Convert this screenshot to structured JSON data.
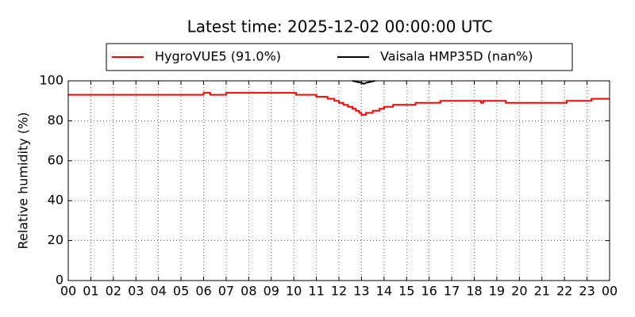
{
  "chart_data": {
    "type": "line",
    "title": "Latest time: 2025-12-02 00:00:00 UTC",
    "ylabel": "Relative humidity (%)",
    "xlim": [
      0,
      24
    ],
    "ylim": [
      0,
      100
    ],
    "xticks": [
      {
        "value": 0,
        "label": "00"
      },
      {
        "value": 1,
        "label": "01"
      },
      {
        "value": 2,
        "label": "02"
      },
      {
        "value": 3,
        "label": "03"
      },
      {
        "value": 4,
        "label": "04"
      },
      {
        "value": 5,
        "label": "05"
      },
      {
        "value": 6,
        "label": "06"
      },
      {
        "value": 7,
        "label": "07"
      },
      {
        "value": 8,
        "label": "08"
      },
      {
        "value": 9,
        "label": "09"
      },
      {
        "value": 10,
        "label": "10"
      },
      {
        "value": 11,
        "label": "11"
      },
      {
        "value": 12,
        "label": "12"
      },
      {
        "value": 13,
        "label": "13"
      },
      {
        "value": 14,
        "label": "14"
      },
      {
        "value": 15,
        "label": "15"
      },
      {
        "value": 16,
        "label": "16"
      },
      {
        "value": 17,
        "label": "17"
      },
      {
        "value": 18,
        "label": "18"
      },
      {
        "value": 19,
        "label": "19"
      },
      {
        "value": 20,
        "label": "20"
      },
      {
        "value": 21,
        "label": "21"
      },
      {
        "value": 22,
        "label": "22"
      },
      {
        "value": 23,
        "label": "23"
      },
      {
        "value": 24,
        "label": "00"
      }
    ],
    "yticks": [
      0,
      20,
      40,
      60,
      80,
      100
    ],
    "grid": true,
    "legend": "upper center",
    "series": [
      {
        "name": "HygroVUE5 (91.0%)",
        "color": "#ff0000",
        "x": [
          0,
          6.0,
          6.0,
          6.3,
          6.3,
          7.0,
          7.0,
          10.1,
          10.1,
          11.0,
          11.0,
          11.5,
          11.5,
          11.8,
          11.8,
          12.0,
          12.0,
          12.2,
          12.2,
          12.4,
          12.4,
          12.6,
          12.6,
          12.75,
          12.75,
          12.9,
          12.9,
          13.0,
          13.0,
          13.2,
          13.2,
          13.5,
          13.5,
          13.8,
          13.8,
          14.0,
          14.0,
          14.4,
          14.4,
          15.4,
          15.4,
          16.5,
          16.5,
          18.3,
          18.3,
          18.4,
          18.4,
          19.4,
          19.4,
          22.1,
          22.1,
          23.2,
          23.2,
          24
        ],
        "values": [
          93,
          93,
          94,
          94,
          93,
          93,
          94,
          94,
          93,
          93,
          92,
          92,
          91,
          91,
          90,
          90,
          89,
          89,
          88,
          88,
          87,
          87,
          86,
          86,
          85,
          85,
          84,
          84,
          83,
          83,
          84,
          84,
          85,
          85,
          86,
          86,
          87,
          87,
          88,
          88,
          89,
          89,
          90,
          90,
          89,
          89,
          90,
          90,
          89,
          89,
          90,
          90,
          91,
          91
        ]
      },
      {
        "name": "Vaisala HMP35D (nan%)",
        "color": "#000000",
        "x": [
          12.6,
          12.8,
          13.0,
          13.1,
          13.2,
          13.4,
          13.6
        ],
        "values": [
          100,
          99.5,
          99,
          98.5,
          99,
          99.5,
          100
        ]
      }
    ]
  }
}
